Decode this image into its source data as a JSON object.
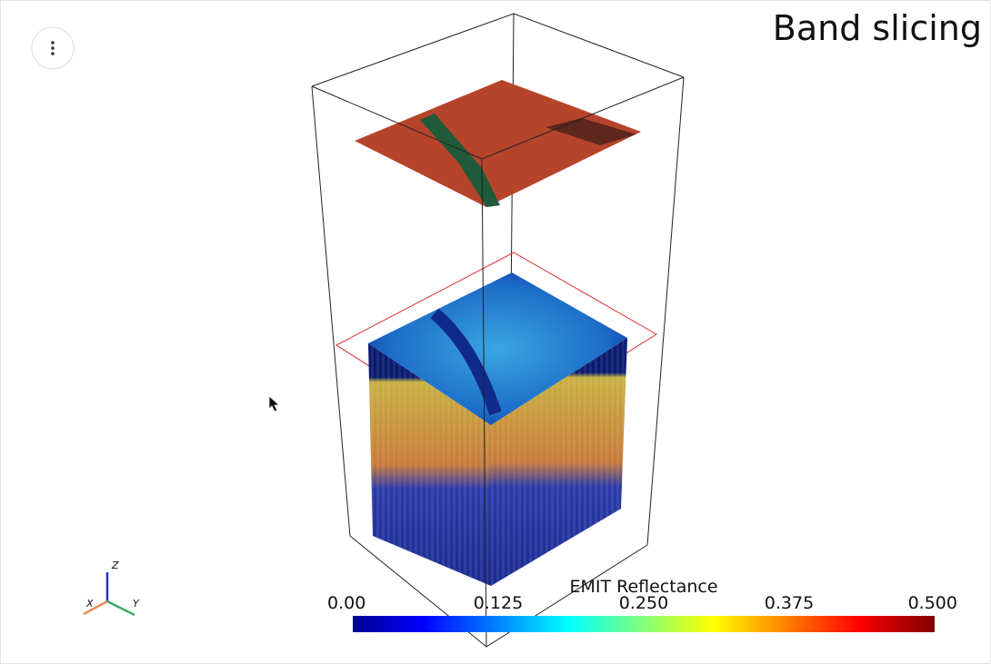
{
  "title": "Band slicing",
  "axes_widget": {
    "x": "X",
    "y": "Y",
    "z": "Z"
  },
  "colorbar": {
    "title": "EMIT Reflectance",
    "range": [
      0,
      0.5
    ],
    "ticks": [
      {
        "value": 0,
        "label": "0.00"
      },
      0.125,
      {
        "value": 0.25,
        "label": "0.250"
      },
      0.375,
      {
        "value": 0.5,
        "label": "0.500"
      }
    ]
  }
}
